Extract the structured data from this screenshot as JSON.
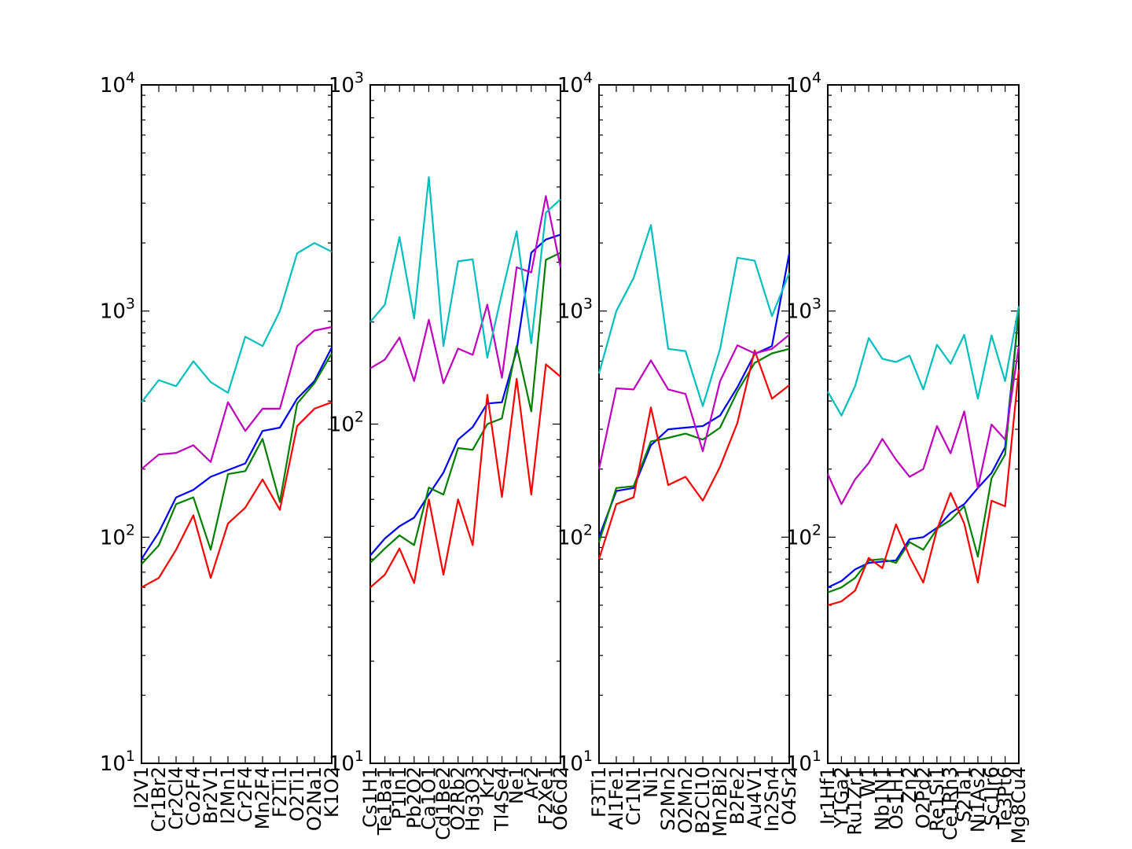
{
  "chart_data": [
    {
      "type": "line",
      "y_scale": "log",
      "ylim": [
        10,
        10000
      ],
      "y_ticks": [
        10,
        100,
        1000,
        10000
      ],
      "categories": [
        "I2V1",
        "Cr1Br2",
        "Cr2Cl4",
        "Co2F4",
        "Br2V1",
        "I2Mn1",
        "Cr2F4",
        "Mn2F4",
        "F2Ti1",
        "O2Ti1",
        "O2Na1",
        "K1O2"
      ],
      "series": [
        {
          "color": "#0000ff",
          "values": [
            80,
            105,
            150,
            162,
            185,
            198,
            212,
            295,
            305,
            410,
            490,
            690
          ]
        },
        {
          "color": "#008000",
          "values": [
            76,
            92,
            140,
            150,
            88,
            190,
            196,
            272,
            143,
            390,
            480,
            650
          ]
        },
        {
          "color": "#ff0000",
          "values": [
            60,
            66,
            88,
            125,
            66,
            115,
            135,
            180,
            132,
            310,
            370,
            395
          ]
        },
        {
          "color": "#bf00bf",
          "values": [
            200,
            232,
            236,
            255,
            215,
            395,
            295,
            370,
            370,
            700,
            820,
            850
          ]
        },
        {
          "color": "#00bfbf",
          "values": [
            395,
            495,
            465,
            600,
            485,
            435,
            770,
            700,
            1000,
            1800,
            2000,
            1830
          ]
        }
      ]
    },
    {
      "type": "line",
      "y_scale": "log",
      "ylim": [
        10,
        1000
      ],
      "y_ticks": [
        10,
        100,
        1000
      ],
      "categories": [
        "Cs1H1",
        "Te1Ba1",
        "P1In1",
        "Pb2O2",
        "Ca1O1",
        "Cd1Be2",
        "O2Rb2",
        "Hg3O3",
        "Kr2",
        "Tl4Se4",
        "Ne1",
        "Ar2",
        "F2Xe1",
        "O6Cd2"
      ],
      "series": [
        {
          "color": "#0000ff",
          "values": [
            41,
            46,
            50,
            53,
            62,
            72,
            90,
            98,
            115,
            116,
            165,
            320,
            350,
            362
          ]
        },
        {
          "color": "#008000",
          "values": [
            39,
            43,
            47,
            44,
            65,
            62,
            85,
            84,
            100,
            104,
            170,
            109,
            305,
            320
          ]
        },
        {
          "color": "#ff0000",
          "values": [
            33,
            36,
            43,
            34,
            60,
            36,
            60,
            44,
            122,
            61,
            136,
            62,
            150,
            138
          ]
        },
        {
          "color": "#bf00bf",
          "values": [
            146,
            155,
            180,
            134,
            203,
            132,
            167,
            160,
            225,
            137,
            290,
            280,
            470,
            290
          ]
        },
        {
          "color": "#00bfbf",
          "values": [
            200,
            225,
            356,
            205,
            535,
            170,
            302,
            306,
            157,
            243,
            370,
            173,
            420,
            460
          ]
        }
      ]
    },
    {
      "type": "line",
      "y_scale": "log",
      "ylim": [
        10,
        10000
      ],
      "y_ticks": [
        10,
        100,
        1000,
        10000
      ],
      "categories": [
        "F3Ti1",
        "Al1Fe1",
        "Cr1N1",
        "Ni1",
        "S2Mn2",
        "O2Mn2",
        "B2Cl10",
        "Mn2Bi2",
        "B2Fe2",
        "Au4V1",
        "In2Sn4",
        "O4Sr2"
      ],
      "series": [
        {
          "color": "#0000ff",
          "values": [
            100,
            160,
            165,
            255,
            300,
            305,
            310,
            345,
            460,
            645,
            700,
            1800
          ]
        },
        {
          "color": "#008000",
          "values": [
            95,
            165,
            168,
            265,
            275,
            287,
            270,
            305,
            440,
            590,
            650,
            680
          ]
        },
        {
          "color": "#ff0000",
          "values": [
            80,
            140,
            150,
            375,
            170,
            185,
            145,
            205,
            320,
            670,
            410,
            470
          ]
        },
        {
          "color": "#bf00bf",
          "values": [
            200,
            455,
            450,
            605,
            450,
            430,
            240,
            490,
            705,
            650,
            680,
            785
          ]
        },
        {
          "color": "#00bfbf",
          "values": [
            530,
            1000,
            1400,
            2400,
            680,
            665,
            380,
            680,
            1720,
            1670,
            950,
            1470
          ]
        }
      ]
    },
    {
      "type": "line",
      "y_scale": "log",
      "ylim": [
        10,
        10000
      ],
      "y_ticks": [
        10,
        100,
        1000,
        10000
      ],
      "categories": [
        "Ir1Hf1",
        "Y1Ga2",
        "Ru1Zr1",
        "W1",
        "Nb1N1",
        "Os1H1",
        "Zn2",
        "O2Pd2",
        "Re1Si1",
        "Ce1Rh3",
        "S2Ta1",
        "Ni1As2",
        "Sc1Ir6",
        "Te3Pt6",
        "Mg8Cu4"
      ],
      "series": [
        {
          "color": "#0000ff",
          "values": [
            60,
            64,
            72,
            77,
            78,
            79,
            98,
            100,
            110,
            128,
            140,
            165,
            192,
            250,
            1000
          ]
        },
        {
          "color": "#008000",
          "values": [
            57,
            60,
            66,
            79,
            80,
            77,
            95,
            88,
            109,
            119,
            137,
            82,
            182,
            232,
            1000
          ]
        },
        {
          "color": "#ff0000",
          "values": [
            50,
            52,
            58,
            81,
            73,
            114,
            82,
            63,
            108,
            157,
            115,
            63,
            145,
            137,
            550
          ]
        },
        {
          "color": "#bf00bf",
          "values": [
            190,
            140,
            180,
            213,
            272,
            220,
            185,
            200,
            310,
            235,
            360,
            165,
            315,
            270,
            700
          ]
        },
        {
          "color": "#00bfbf",
          "values": [
            440,
            345,
            465,
            760,
            615,
            595,
            635,
            450,
            710,
            585,
            785,
            410,
            780,
            490,
            1050
          ]
        }
      ]
    }
  ]
}
